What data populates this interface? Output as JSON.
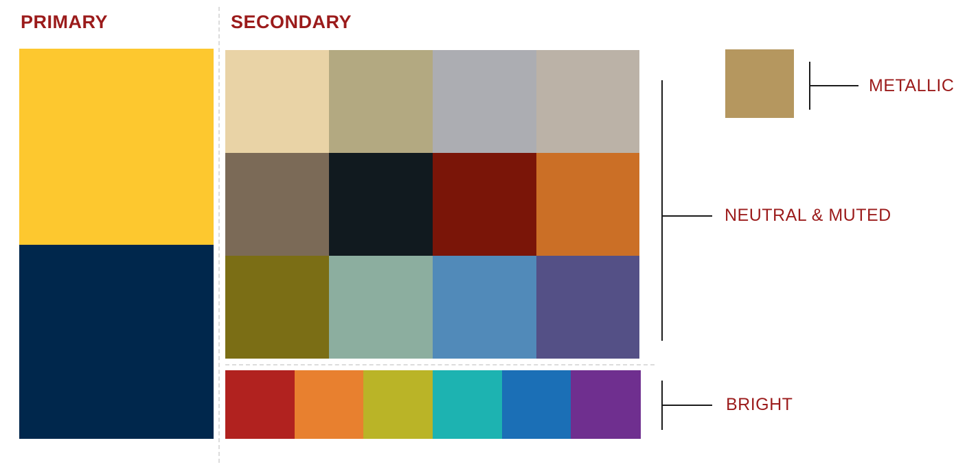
{
  "headings": {
    "primary": "PRIMARY",
    "secondary": "SECONDARY"
  },
  "labels": {
    "metallic": "METALLIC",
    "neutral": "NEUTRAL & MUTED",
    "bright": "BRIGHT"
  },
  "colors": {
    "text": "#9b1b1b",
    "primary": [
      "#fdc82f",
      "#00274c"
    ],
    "neutral": [
      [
        "#e9d3a6",
        "#b3a981",
        "#acadb2",
        "#bbb2a7"
      ],
      [
        "#7b6a57",
        "#111a1f",
        "#7a1508",
        "#cb6f26"
      ],
      [
        "#7b6e15",
        "#8cae9f",
        "#518ab9",
        "#545086"
      ]
    ],
    "bright": [
      "#b1221f",
      "#e8802f",
      "#bab427",
      "#1db3b1",
      "#1b6fb6",
      "#6f2f8f"
    ],
    "metallic": "#b5975f"
  }
}
